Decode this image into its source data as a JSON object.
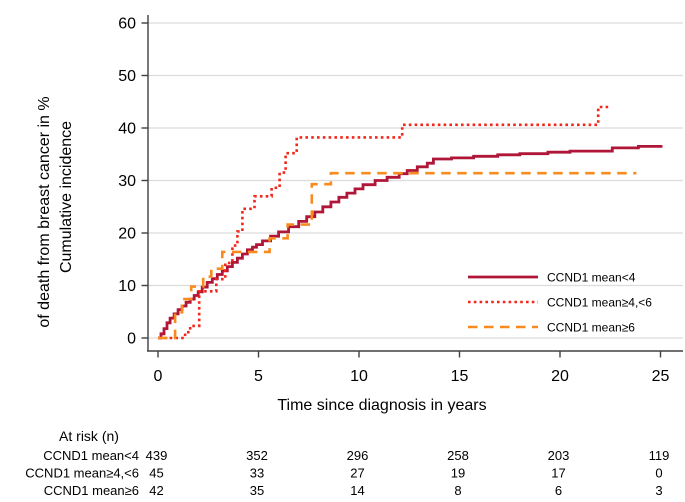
{
  "chart_data": {
    "type": "line",
    "subtype": "cumulative-incidence-step-curves",
    "title": "",
    "xlabel": "Time since diagnosis in years",
    "ylabel_lines": [
      "Cumulative incidence",
      "of death from breast cancer in %"
    ],
    "xlim": [
      0,
      25
    ],
    "ylim": [
      0,
      60
    ],
    "x_ticks": [
      0,
      5,
      10,
      15,
      20,
      25
    ],
    "y_ticks": [
      0,
      10,
      20,
      30,
      40,
      50,
      60
    ],
    "grid": "horizontal",
    "legend_position": "inside-right",
    "series": [
      {
        "name": "CCND1 mean<4",
        "color": "#b01638",
        "style": "solid",
        "points": [
          [
            0,
            0
          ],
          [
            0.15,
            0.8
          ],
          [
            0.3,
            1.8
          ],
          [
            0.45,
            2.9
          ],
          [
            0.6,
            3.8
          ],
          [
            0.8,
            4.6
          ],
          [
            1.0,
            5.4
          ],
          [
            1.2,
            6.1
          ],
          [
            1.4,
            6.8
          ],
          [
            1.6,
            7.4
          ],
          [
            1.8,
            8.1
          ],
          [
            2.0,
            8.8
          ],
          [
            2.2,
            9.7
          ],
          [
            2.45,
            10.6
          ],
          [
            2.7,
            11.3
          ],
          [
            2.95,
            12.1
          ],
          [
            3.2,
            12.8
          ],
          [
            3.45,
            13.6
          ],
          [
            3.7,
            14.4
          ],
          [
            3.95,
            15.2
          ],
          [
            4.2,
            16.0
          ],
          [
            4.45,
            16.8
          ],
          [
            4.7,
            17.3
          ],
          [
            4.9,
            17.8
          ],
          [
            5.2,
            18.5
          ],
          [
            5.6,
            19.4
          ],
          [
            6.0,
            20.2
          ],
          [
            6.5,
            21.2
          ],
          [
            7.0,
            22.2
          ],
          [
            7.4,
            23.1
          ],
          [
            7.8,
            24.0
          ],
          [
            8.2,
            25.0
          ],
          [
            8.6,
            25.9
          ],
          [
            9.0,
            26.8
          ],
          [
            9.4,
            27.6
          ],
          [
            9.8,
            28.4
          ],
          [
            10.2,
            29.2
          ],
          [
            10.8,
            30.0
          ],
          [
            11.4,
            30.6
          ],
          [
            12.0,
            31.3
          ],
          [
            12.4,
            31.9
          ],
          [
            12.9,
            32.6
          ],
          [
            13.4,
            33.3
          ],
          [
            13.7,
            34.1
          ],
          [
            14.6,
            34.3
          ],
          [
            15.7,
            34.6
          ],
          [
            16.9,
            34.9
          ],
          [
            18.0,
            35.1
          ],
          [
            19.4,
            35.4
          ],
          [
            20.5,
            35.6
          ],
          [
            22.6,
            36.2
          ],
          [
            23.9,
            36.5
          ],
          [
            25.1,
            36.5
          ]
        ]
      },
      {
        "name": "CCND1 mean≥4,<6",
        "color": "#f2261a",
        "style": "dotted",
        "points": [
          [
            0,
            0
          ],
          [
            1.35,
            1.1
          ],
          [
            1.6,
            2.3
          ],
          [
            2.05,
            8.9
          ],
          [
            2.9,
            11.2
          ],
          [
            3.35,
            14.3
          ],
          [
            3.7,
            17.6
          ],
          [
            3.95,
            20.3
          ],
          [
            4.2,
            24.6
          ],
          [
            4.8,
            27.0
          ],
          [
            5.65,
            28.6
          ],
          [
            6.05,
            31.5
          ],
          [
            6.35,
            35.2
          ],
          [
            6.9,
            38.2
          ],
          [
            12.15,
            40.6
          ],
          [
            21.9,
            44.0
          ],
          [
            22.4,
            44.0
          ]
        ]
      },
      {
        "name": "CCND1 mean≥6",
        "color": "#f78b1f",
        "style": "dashed",
        "points": [
          [
            0,
            0
          ],
          [
            0.85,
            4.9
          ],
          [
            1.2,
            7.4
          ],
          [
            1.65,
            9.8
          ],
          [
            2.25,
            11.7
          ],
          [
            2.65,
            13.2
          ],
          [
            3.2,
            16.4
          ],
          [
            5.55,
            19.0
          ],
          [
            6.45,
            21.6
          ],
          [
            7.65,
            29.3
          ],
          [
            8.6,
            31.4
          ],
          [
            23.8,
            31.4
          ]
        ]
      }
    ]
  },
  "at_risk_table": {
    "header": "At risk (n)",
    "time_points": [
      0,
      5,
      10,
      15,
      20,
      25
    ],
    "rows": [
      {
        "label": "CCND1 mean<4",
        "values": [
          "439",
          "352",
          "296",
          "258",
          "203",
          "119"
        ]
      },
      {
        "label": "CCND1 mean≥4,<6",
        "values": [
          "45",
          "33",
          "27",
          "19",
          "17",
          "0"
        ]
      },
      {
        "label": "CCND1 mean≥6",
        "values": [
          "42",
          "35",
          "14",
          "8",
          "6",
          "3"
        ]
      }
    ]
  },
  "style": {
    "background": "#ffffff",
    "grid_color": "#dcdcdc",
    "axis_color": "#404040",
    "text_color": "#000000"
  }
}
